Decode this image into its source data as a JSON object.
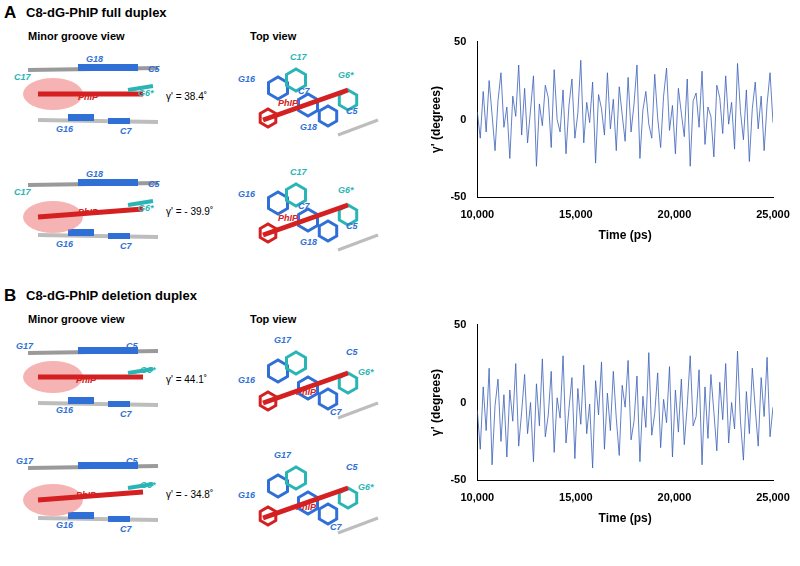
{
  "panels": [
    {
      "label": "A",
      "title": "C8-dG-PhIP full duplex",
      "view_titles": [
        "Minor groove view",
        "Top view"
      ],
      "rows": [
        {
          "gamma": "γ' = 38.4˚",
          "minor_groove": [
            {
              "text": "C17",
              "color": "#2ab5b5"
            },
            {
              "text": "G18",
              "color": "#2f6fd6"
            },
            {
              "text": "C5",
              "color": "#2f6fd6"
            },
            {
              "text": "PhIP",
              "color": "#d42020"
            },
            {
              "text": "G6*",
              "color": "#2ab5b5"
            },
            {
              "text": "G16",
              "color": "#2f6fd6"
            },
            {
              "text": "C7",
              "color": "#2f6fd6"
            }
          ],
          "top": [
            {
              "text": "C17",
              "color": "#2ab5b5"
            },
            {
              "text": "G16",
              "color": "#2f6fd6"
            },
            {
              "text": "PhIP",
              "color": "#d42020"
            },
            {
              "text": "G6*",
              "color": "#2ab5b5"
            },
            {
              "text": "C7",
              "color": "#2f6fd6"
            },
            {
              "text": "G18",
              "color": "#2f6fd6"
            },
            {
              "text": "C5",
              "color": "#2f6fd6"
            }
          ]
        },
        {
          "gamma": "γ' = - 39.9˚",
          "minor_groove": [
            {
              "text": "C17",
              "color": "#2ab5b5"
            },
            {
              "text": "G18",
              "color": "#2f6fd6"
            },
            {
              "text": "C5",
              "color": "#2f6fd6"
            },
            {
              "text": "PhIP",
              "color": "#d42020"
            },
            {
              "text": "G6*",
              "color": "#2ab5b5"
            },
            {
              "text": "G16",
              "color": "#2f6fd6"
            },
            {
              "text": "C7",
              "color": "#2f6fd6"
            }
          ],
          "top": [
            {
              "text": "C17",
              "color": "#2ab5b5"
            },
            {
              "text": "G16",
              "color": "#2f6fd6"
            },
            {
              "text": "PhIP",
              "color": "#d42020"
            },
            {
              "text": "G6*",
              "color": "#2ab5b5"
            },
            {
              "text": "C7",
              "color": "#2f6fd6"
            },
            {
              "text": "G18",
              "color": "#2f6fd6"
            },
            {
              "text": "C5",
              "color": "#2f6fd6"
            }
          ]
        }
      ]
    },
    {
      "label": "B",
      "title": "C8-dG-PhIP deletion duplex",
      "view_titles": [
        "Minor groove view",
        "Top view"
      ],
      "rows": [
        {
          "gamma": "γ' = 44.1˚",
          "minor_groove": [
            {
              "text": "G17",
              "color": "#2f6fd6"
            },
            {
              "text": "C5",
              "color": "#2f6fd6"
            },
            {
              "text": "PhIP",
              "color": "#d42020"
            },
            {
              "text": "G6*",
              "color": "#2ab5b5"
            },
            {
              "text": "G16",
              "color": "#2f6fd6"
            },
            {
              "text": "C7",
              "color": "#2f6fd6"
            }
          ],
          "top": [
            {
              "text": "G17",
              "color": "#2f6fd6"
            },
            {
              "text": "C5",
              "color": "#2f6fd6"
            },
            {
              "text": "G16",
              "color": "#2f6fd6"
            },
            {
              "text": "PhIP",
              "color": "#d42020"
            },
            {
              "text": "G6*",
              "color": "#2ab5b5"
            },
            {
              "text": "C7",
              "color": "#2f6fd6"
            }
          ]
        },
        {
          "gamma": "γ' = - 34.8˚",
          "minor_groove": [
            {
              "text": "G17",
              "color": "#2f6fd6"
            },
            {
              "text": "C5",
              "color": "#2f6fd6"
            },
            {
              "text": "PhIP",
              "color": "#d42020"
            },
            {
              "text": "G6*",
              "color": "#2ab5b5"
            },
            {
              "text": "G16",
              "color": "#2f6fd6"
            },
            {
              "text": "C7",
              "color": "#2f6fd6"
            }
          ],
          "top": [
            {
              "text": "G17",
              "color": "#2f6fd6"
            },
            {
              "text": "C5",
              "color": "#2f6fd6"
            },
            {
              "text": "G16",
              "color": "#2f6fd6"
            },
            {
              "text": "PhIP",
              "color": "#d42020"
            },
            {
              "text": "G6*",
              "color": "#2ab5b5"
            },
            {
              "text": "C7",
              "color": "#2f6fd6"
            }
          ]
        }
      ]
    }
  ],
  "chart_data": [
    {
      "type": "line",
      "x_label": "Time (ps)",
      "y_label": "γ' (degrees)",
      "color": "#3a5fb8",
      "grid": false,
      "xlim": [
        10000,
        25000
      ],
      "ylim": [
        -50,
        50
      ],
      "xticks": [
        {
          "value": 10000,
          "label": "10,000"
        },
        {
          "value": 15000,
          "label": "15,000"
        },
        {
          "value": 20000,
          "label": "20,000"
        },
        {
          "value": 25000,
          "label": "25,000"
        }
      ],
      "yticks": [
        -50,
        0,
        50
      ],
      "x": [
        10000,
        10150,
        10300,
        10450,
        10600,
        10750,
        10900,
        11050,
        11200,
        11350,
        11500,
        11650,
        11800,
        11950,
        12100,
        12250,
        12400,
        12550,
        12700,
        12850,
        13000,
        13150,
        13300,
        13450,
        13600,
        13750,
        13900,
        14050,
        14200,
        14350,
        14500,
        14650,
        14800,
        14950,
        15100,
        15250,
        15400,
        15550,
        15700,
        15850,
        16000,
        16150,
        16300,
        16450,
        16600,
        16750,
        16900,
        17050,
        17200,
        17350,
        17500,
        17650,
        17800,
        17950,
        18100,
        18250,
        18400,
        18550,
        18700,
        18850,
        19000,
        19150,
        19300,
        19450,
        19600,
        19750,
        19900,
        20050,
        20200,
        20350,
        20500,
        20650,
        20800,
        20950,
        21100,
        21250,
        21400,
        21550,
        21700,
        21850,
        22000,
        22150,
        22300,
        22450,
        22600,
        22750,
        22900,
        23050,
        23200,
        23350,
        23500,
        23650,
        23800,
        23950,
        24100,
        24250,
        24400,
        24550,
        24700,
        24850,
        25000
      ],
      "values": [
        5,
        -12,
        18,
        -8,
        25,
        3,
        -20,
        12,
        30,
        -5,
        8,
        -25,
        15,
        2,
        35,
        -10,
        20,
        -15,
        6,
        28,
        -30,
        10,
        -4,
        22,
        14,
        -18,
        32,
        0,
        -8,
        19,
        -22,
        9,
        26,
        -12,
        4,
        38,
        -15,
        11,
        -2,
        24,
        -28,
        16,
        7,
        -10,
        30,
        -6,
        13,
        -20,
        21,
        3,
        -14,
        27,
        -8,
        10,
        35,
        -25,
        6,
        18,
        -3,
        -12,
        29,
        1,
        -18,
        15,
        33,
        -7,
        9,
        -22,
        20,
        4,
        -11,
        26,
        -30,
        12,
        17,
        -5,
        31,
        -16,
        8,
        2,
        -24,
        22,
        14,
        -9,
        28,
        -3,
        11,
        -19,
        36,
        5,
        -13,
        19,
        -27,
        7,
        24,
        -6,
        15,
        -20,
        10,
        30,
        -2
      ]
    },
    {
      "type": "line",
      "x_label": "Time (ps)",
      "y_label": "γ' (degrees)",
      "color": "#3a5fb8",
      "grid": false,
      "xlim": [
        10000,
        25000
      ],
      "ylim": [
        -50,
        50
      ],
      "xticks": [
        {
          "value": 10000,
          "label": "10,000"
        },
        {
          "value": 15000,
          "label": "15,000"
        },
        {
          "value": 20000,
          "label": "20,000"
        },
        {
          "value": 25000,
          "label": "25,000"
        }
      ],
      "yticks": [
        -50,
        0,
        50
      ],
      "x": [
        10000,
        10150,
        10300,
        10450,
        10600,
        10750,
        10900,
        11050,
        11200,
        11350,
        11500,
        11650,
        11800,
        11950,
        12100,
        12250,
        12400,
        12550,
        12700,
        12850,
        13000,
        13150,
        13300,
        13450,
        13600,
        13750,
        13900,
        14050,
        14200,
        14350,
        14500,
        14650,
        14800,
        14950,
        15100,
        15250,
        15400,
        15550,
        15700,
        15850,
        16000,
        16150,
        16300,
        16450,
        16600,
        16750,
        16900,
        17050,
        17200,
        17350,
        17500,
        17650,
        17800,
        17950,
        18100,
        18250,
        18400,
        18550,
        18700,
        18850,
        19000,
        19150,
        19300,
        19450,
        19600,
        19750,
        19900,
        20050,
        20200,
        20350,
        20500,
        20650,
        20800,
        20950,
        21100,
        21250,
        21400,
        21550,
        21700,
        21850,
        22000,
        22150,
        22300,
        22450,
        22600,
        22750,
        22900,
        23050,
        23200,
        23350,
        23500,
        23650,
        23800,
        23950,
        24100,
        24250,
        24400,
        24550,
        24700,
        24850,
        25000
      ],
      "values": [
        -5,
        -30,
        10,
        -18,
        22,
        -40,
        -2,
        15,
        -25,
        5,
        -35,
        8,
        -12,
        25,
        -28,
        -6,
        18,
        -20,
        0,
        -38,
        12,
        -15,
        28,
        -22,
        -8,
        20,
        -32,
        3,
        -10,
        30,
        -26,
        -4,
        16,
        -36,
        9,
        -14,
        24,
        -20,
        -1,
        -42,
        14,
        -8,
        26,
        -30,
        6,
        -18,
        20,
        -10,
        -34,
        11,
        -3,
        27,
        -24,
        -12,
        17,
        -38,
        4,
        -16,
        32,
        -21,
        -7,
        19,
        -29,
        2,
        -13,
        23,
        -35,
        8,
        -19,
        15,
        -27,
        -2,
        30,
        -15,
        -9,
        21,
        -40,
        10,
        -23,
        18,
        -6,
        -31,
        13,
        -11,
        25,
        -26,
        0,
        -17,
        33,
        -12,
        -37,
        7,
        -20,
        22,
        -4,
        -28,
        16,
        -9,
        29,
        -22,
        -3
      ]
    }
  ]
}
